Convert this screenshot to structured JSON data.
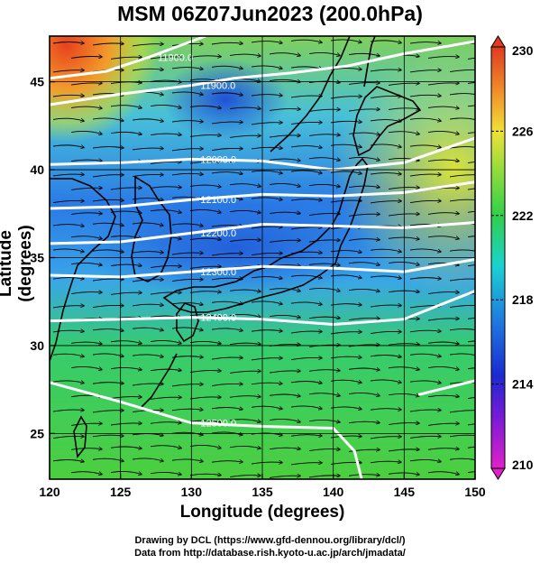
{
  "title": "MSM 06Z07Jun2023 (200.0hPa)",
  "credits": {
    "line1": "Drawing by DCL (https://www.gfd-dennou.org/library/dcl/)",
    "line2": "Data from http://database.rish.kyoto-u.ac.jp/arch/jmadata/"
  },
  "chart_data": {
    "type": "heatmap",
    "title": "MSM 06Z07Jun2023 (200.0hPa)",
    "xlabel": "Longitude (degrees)",
    "ylabel": "Latitude  (degrees)",
    "xlim": [
      120,
      150
    ],
    "ylim": [
      22.4,
      47.6
    ],
    "x_ticks": [
      120,
      125,
      130,
      135,
      140,
      145,
      150
    ],
    "y_ticks": [
      25,
      30,
      35,
      40,
      45
    ],
    "colorbar": {
      "min": 210,
      "max": 230,
      "ticks": [
        210,
        214,
        218,
        222,
        226,
        230
      ]
    },
    "grid": true,
    "contours": [
      {
        "label": "11900.0",
        "points": [
          [
            120,
            45.2
          ],
          [
            124,
            45.6
          ],
          [
            127,
            46.4
          ],
          [
            131,
            47.6
          ]
        ]
      },
      {
        "label": "11900.0",
        "points": [
          [
            120,
            43.7
          ],
          [
            125,
            44.3
          ],
          [
            130,
            44.8
          ],
          [
            133,
            45.2
          ],
          [
            137,
            45.5
          ],
          [
            141,
            45.9
          ],
          [
            145,
            46.6
          ],
          [
            150,
            47.3
          ]
        ]
      },
      {
        "label": "12000.0",
        "points": [
          [
            120,
            40.3
          ],
          [
            125,
            40.4
          ],
          [
            130,
            40.6
          ],
          [
            135,
            40.5
          ],
          [
            140,
            40.0
          ],
          [
            145,
            40.4
          ],
          [
            150,
            41.8
          ]
        ]
      },
      {
        "label": "12100.0",
        "points": [
          [
            120,
            37.8
          ],
          [
            125,
            37.9
          ],
          [
            130,
            38.3
          ],
          [
            135,
            38.6
          ],
          [
            140,
            38.5
          ],
          [
            145,
            38.7
          ],
          [
            150,
            39.3
          ]
        ]
      },
      {
        "label": "12200.0",
        "points": [
          [
            120,
            35.8
          ],
          [
            125,
            35.9
          ],
          [
            130,
            36.4
          ],
          [
            135,
            36.9
          ],
          [
            140,
            36.8
          ],
          [
            145,
            36.7
          ],
          [
            150,
            37.0
          ]
        ]
      },
      {
        "label": "12300.0",
        "points": [
          [
            120,
            34.0
          ],
          [
            125,
            33.9
          ],
          [
            130,
            34.2
          ],
          [
            135,
            34.5
          ],
          [
            140,
            34.4
          ],
          [
            145,
            34.2
          ],
          [
            150,
            34.9
          ]
        ]
      },
      {
        "label": "12400.0",
        "points": [
          [
            120,
            31.4
          ],
          [
            125,
            31.5
          ],
          [
            130,
            31.6
          ],
          [
            135,
            31.5
          ],
          [
            140,
            31.2
          ],
          [
            145,
            31.5
          ],
          [
            150,
            33.1
          ]
        ]
      },
      {
        "label": "12500.0",
        "points": [
          [
            120,
            27.9
          ],
          [
            125,
            26.8
          ],
          [
            130,
            25.6
          ],
          [
            135,
            25.4
          ],
          [
            140,
            25.3
          ],
          [
            141.5,
            24.0
          ],
          [
            142,
            22.4
          ]
        ]
      },
      {
        "label": "",
        "points": [
          [
            146,
            27.2
          ],
          [
            150,
            28.0
          ]
        ]
      }
    ]
  }
}
